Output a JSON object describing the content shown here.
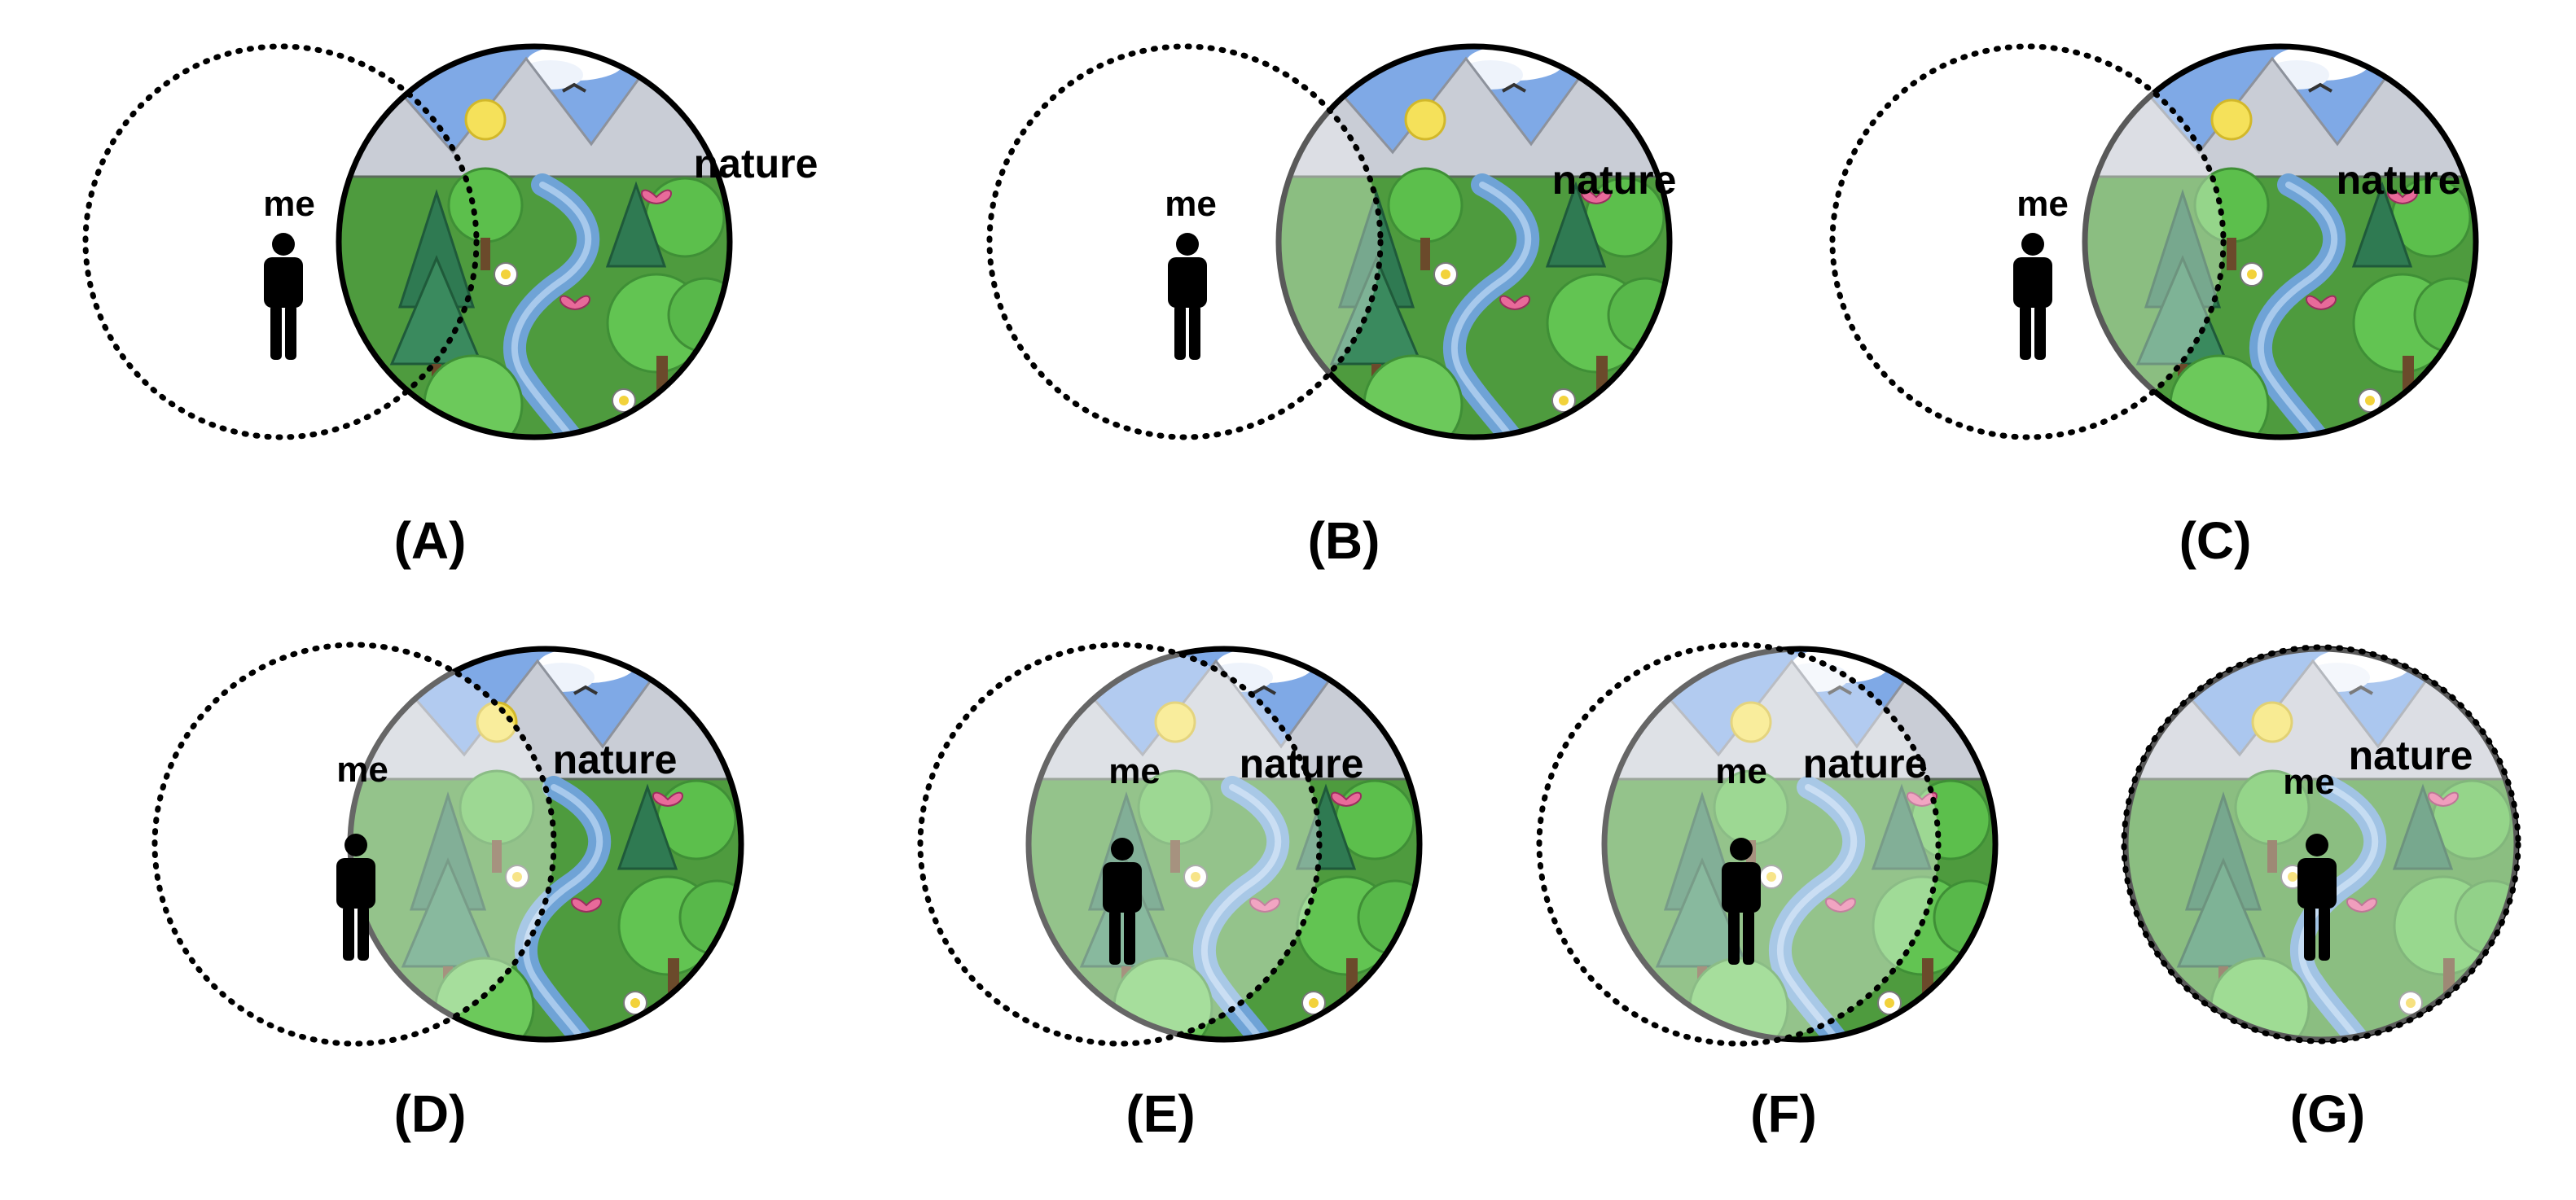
{
  "panels": [
    {
      "id": "A",
      "label": "(A)",
      "me_text": "me",
      "nature_text": "nature"
    },
    {
      "id": "B",
      "label": "(B)",
      "me_text": "me",
      "nature_text": "nature"
    },
    {
      "id": "C",
      "label": "(C)",
      "me_text": "me",
      "nature_text": "nature"
    },
    {
      "id": "D",
      "label": "(D)",
      "me_text": "me",
      "nature_text": "nature"
    },
    {
      "id": "E",
      "label": "(E)",
      "me_text": "me",
      "nature_text": "nature"
    },
    {
      "id": "F",
      "label": "(F)",
      "me_text": "me",
      "nature_text": "nature"
    },
    {
      "id": "G",
      "label": "(G)",
      "me_text": "me",
      "nature_text": "nature"
    }
  ],
  "colors": {
    "sky": "#6f9fe0",
    "mountain": "#c9cdd6",
    "grass": "#4e9b3e",
    "tree_light": "#5cbf4c",
    "tree_dark": "#2f7a52",
    "river": "#6fa3d6",
    "sun": "#f5e15a",
    "butterfly": "#e86a9a",
    "figure": "#000000"
  }
}
